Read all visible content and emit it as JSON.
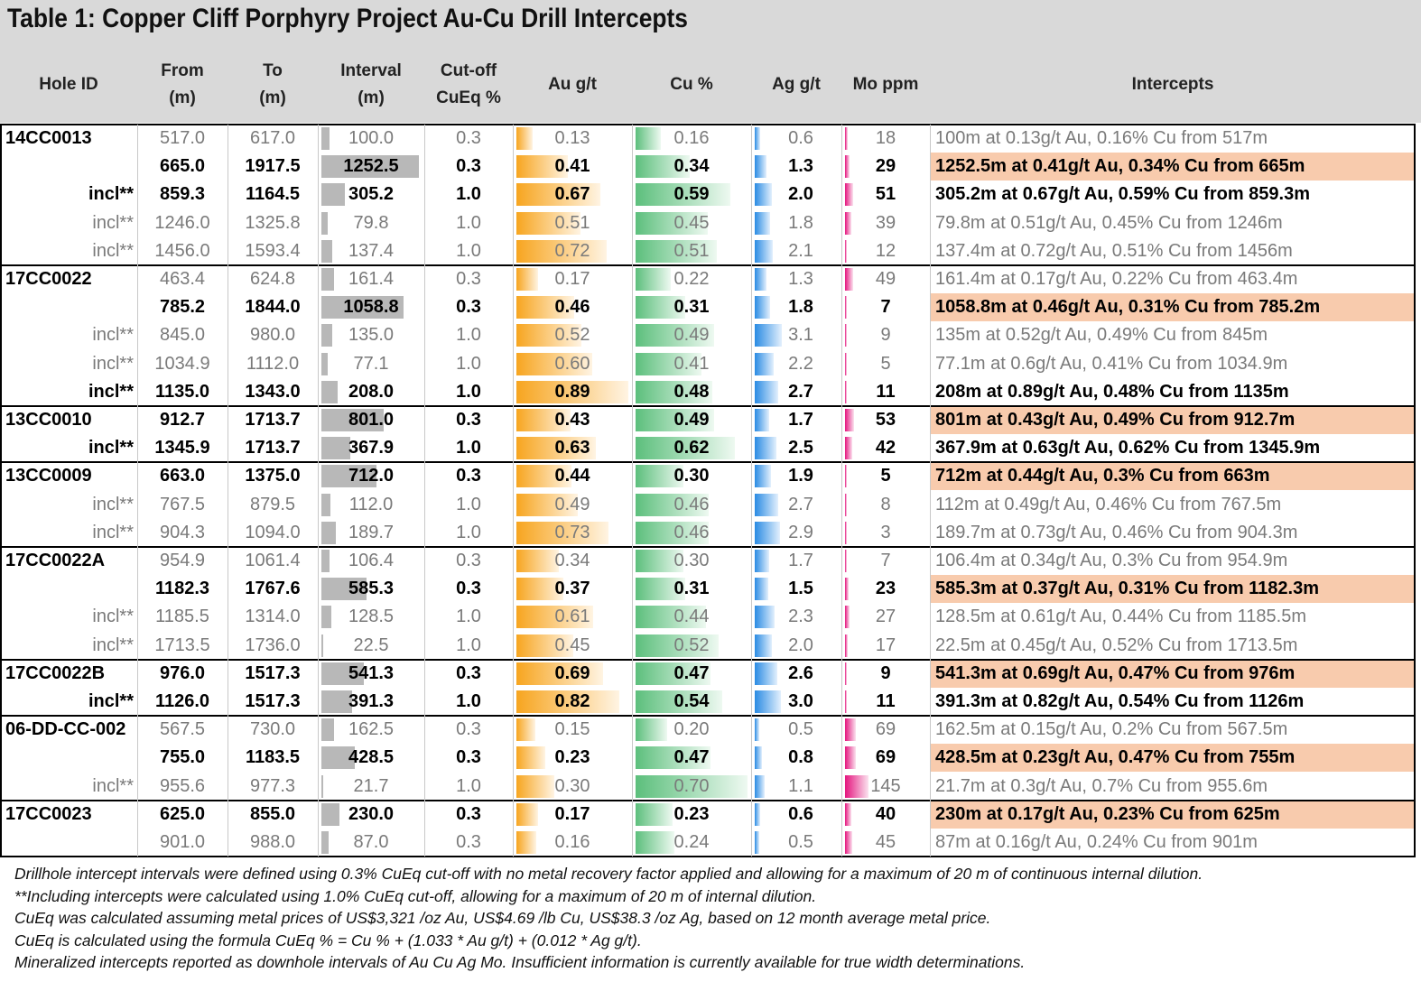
{
  "title": "Table 1: Copper Cliff Porphyry Project Au-Cu Drill Intercepts",
  "columns": {
    "hole_id": "Hole ID",
    "from": "From\n(m)",
    "to": "To\n(m)",
    "interval": "Interval\n(m)",
    "cutoff": "Cut-off\nCuEq %",
    "au": "Au g/t",
    "cu": "Cu %",
    "ag": "Ag g/t",
    "mo": "Mo ppm",
    "intercepts": "Intercepts"
  },
  "holes": [
    {
      "id": "14CC0013",
      "rows": [
        {
          "label": "",
          "from": "517.0",
          "to": "617.0",
          "interval": "100.0",
          "cutoff": "0.3",
          "au": "0.13",
          "cu": "0.16",
          "ag": "0.6",
          "mo": "18",
          "intercept": "100m at 0.13g/t Au, 0.16% Cu from 517m",
          "bold": false,
          "highlight": false
        },
        {
          "label": "",
          "from": "665.0",
          "to": "1917.5",
          "interval": "1252.5",
          "cutoff": "0.3",
          "au": "0.41",
          "cu": "0.34",
          "ag": "1.3",
          "mo": "29",
          "intercept": "1252.5m at 0.41g/t Au, 0.34% Cu from 665m",
          "bold": true,
          "highlight": true
        },
        {
          "label": "incl**",
          "from": "859.3",
          "to": "1164.5",
          "interval": "305.2",
          "cutoff": "1.0",
          "au": "0.67",
          "cu": "0.59",
          "ag": "2.0",
          "mo": "51",
          "intercept": "305.2m at 0.67g/t Au, 0.59% Cu from 859.3m",
          "bold": true,
          "highlight": false
        },
        {
          "label": "incl**",
          "from": "1246.0",
          "to": "1325.8",
          "interval": "79.8",
          "cutoff": "1.0",
          "au": "0.51",
          "cu": "0.45",
          "ag": "1.8",
          "mo": "39",
          "intercept": "79.8m at 0.51g/t Au, 0.45% Cu from 1246m",
          "bold": false,
          "highlight": false
        },
        {
          "label": "incl**",
          "from": "1456.0",
          "to": "1593.4",
          "interval": "137.4",
          "cutoff": "1.0",
          "au": "0.72",
          "cu": "0.51",
          "ag": "2.1",
          "mo": "12",
          "intercept": "137.4m at 0.72g/t Au, 0.51% Cu from 1456m",
          "bold": false,
          "highlight": false
        }
      ]
    },
    {
      "id": "17CC0022",
      "rows": [
        {
          "label": "",
          "from": "463.4",
          "to": "624.8",
          "interval": "161.4",
          "cutoff": "0.3",
          "au": "0.17",
          "cu": "0.22",
          "ag": "1.3",
          "mo": "49",
          "intercept": "161.4m at 0.17g/t Au, 0.22% Cu from 463.4m",
          "bold": false,
          "highlight": false
        },
        {
          "label": "",
          "from": "785.2",
          "to": "1844.0",
          "interval": "1058.8",
          "cutoff": "0.3",
          "au": "0.46",
          "cu": "0.31",
          "ag": "1.8",
          "mo": "7",
          "intercept": "1058.8m at 0.46g/t Au, 0.31% Cu from 785.2m",
          "bold": true,
          "highlight": true
        },
        {
          "label": "incl**",
          "from": "845.0",
          "to": "980.0",
          "interval": "135.0",
          "cutoff": "1.0",
          "au": "0.52",
          "cu": "0.49",
          "ag": "3.1",
          "mo": "9",
          "intercept": "135m at 0.52g/t Au, 0.49% Cu from 845m",
          "bold": false,
          "highlight": false
        },
        {
          "label": "incl**",
          "from": "1034.9",
          "to": "1112.0",
          "interval": "77.1",
          "cutoff": "1.0",
          "au": "0.60",
          "cu": "0.41",
          "ag": "2.2",
          "mo": "5",
          "intercept": "77.1m at 0.6g/t Au, 0.41% Cu from 1034.9m",
          "bold": false,
          "highlight": false
        },
        {
          "label": "incl**",
          "from": "1135.0",
          "to": "1343.0",
          "interval": "208.0",
          "cutoff": "1.0",
          "au": "0.89",
          "cu": "0.48",
          "ag": "2.7",
          "mo": "11",
          "intercept": "208m at 0.89g/t Au, 0.48% Cu from 1135m",
          "bold": true,
          "highlight": false
        }
      ]
    },
    {
      "id": "13CC0010",
      "rows": [
        {
          "label": "",
          "from": "912.7",
          "to": "1713.7",
          "interval": "801.0",
          "cutoff": "0.3",
          "au": "0.43",
          "cu": "0.49",
          "ag": "1.7",
          "mo": "53",
          "intercept": "801m at 0.43g/t Au, 0.49% Cu from 912.7m",
          "bold": true,
          "highlight": true
        },
        {
          "label": "incl**",
          "from": "1345.9",
          "to": "1713.7",
          "interval": "367.9",
          "cutoff": "1.0",
          "au": "0.63",
          "cu": "0.62",
          "ag": "2.5",
          "mo": "42",
          "intercept": "367.9m at 0.63g/t Au, 0.62% Cu from 1345.9m",
          "bold": true,
          "highlight": false
        }
      ]
    },
    {
      "id": "13CC0009",
      "rows": [
        {
          "label": "",
          "from": "663.0",
          "to": "1375.0",
          "interval": "712.0",
          "cutoff": "0.3",
          "au": "0.44",
          "cu": "0.30",
          "ag": "1.9",
          "mo": "5",
          "intercept": "712m at 0.44g/t Au, 0.3% Cu from 663m",
          "bold": true,
          "highlight": true
        },
        {
          "label": "incl**",
          "from": "767.5",
          "to": "879.5",
          "interval": "112.0",
          "cutoff": "1.0",
          "au": "0.49",
          "cu": "0.46",
          "ag": "2.7",
          "mo": "8",
          "intercept": "112m at 0.49g/t Au, 0.46% Cu from 767.5m",
          "bold": false,
          "highlight": false
        },
        {
          "label": "incl**",
          "from": "904.3",
          "to": "1094.0",
          "interval": "189.7",
          "cutoff": "1.0",
          "au": "0.73",
          "cu": "0.46",
          "ag": "2.9",
          "mo": "3",
          "intercept": "189.7m at 0.73g/t Au, 0.46% Cu from 904.3m",
          "bold": false,
          "highlight": false
        }
      ]
    },
    {
      "id": "17CC0022A",
      "rows": [
        {
          "label": "",
          "from": "954.9",
          "to": "1061.4",
          "interval": "106.4",
          "cutoff": "0.3",
          "au": "0.34",
          "cu": "0.30",
          "ag": "1.7",
          "mo": "7",
          "intercept": "106.4m at 0.34g/t Au, 0.3% Cu from 954.9m",
          "bold": false,
          "highlight": false
        },
        {
          "label": "",
          "from": "1182.3",
          "to": "1767.6",
          "interval": "585.3",
          "cutoff": "0.3",
          "au": "0.37",
          "cu": "0.31",
          "ag": "1.5",
          "mo": "23",
          "intercept": "585.3m at 0.37g/t Au, 0.31% Cu from 1182.3m",
          "bold": true,
          "highlight": true
        },
        {
          "label": "incl**",
          "from": "1185.5",
          "to": "1314.0",
          "interval": "128.5",
          "cutoff": "1.0",
          "au": "0.61",
          "cu": "0.44",
          "ag": "2.3",
          "mo": "27",
          "intercept": "128.5m at 0.61g/t Au, 0.44% Cu from 1185.5m",
          "bold": false,
          "highlight": false
        },
        {
          "label": "incl**",
          "from": "1713.5",
          "to": "1736.0",
          "interval": "22.5",
          "cutoff": "1.0",
          "au": "0.45",
          "cu": "0.52",
          "ag": "2.0",
          "mo": "17",
          "intercept": "22.5m at 0.45g/t Au, 0.52% Cu from 1713.5m",
          "bold": false,
          "highlight": false
        }
      ]
    },
    {
      "id": "17CC0022B",
      "rows": [
        {
          "label": "",
          "from": "976.0",
          "to": "1517.3",
          "interval": "541.3",
          "cutoff": "0.3",
          "au": "0.69",
          "cu": "0.47",
          "ag": "2.6",
          "mo": "9",
          "intercept": "541.3m at 0.69g/t Au, 0.47% Cu from 976m",
          "bold": true,
          "highlight": true
        },
        {
          "label": "incl**",
          "from": "1126.0",
          "to": "1517.3",
          "interval": "391.3",
          "cutoff": "1.0",
          "au": "0.82",
          "cu": "0.54",
          "ag": "3.0",
          "mo": "11",
          "intercept": "391.3m at 0.82g/t Au, 0.54% Cu from 1126m",
          "bold": true,
          "highlight": false
        }
      ]
    },
    {
      "id": "06-DD-CC-002",
      "rows": [
        {
          "label": "",
          "from": "567.5",
          "to": "730.0",
          "interval": "162.5",
          "cutoff": "0.3",
          "au": "0.15",
          "cu": "0.20",
          "ag": "0.5",
          "mo": "69",
          "intercept": "162.5m at 0.15g/t Au, 0.2% Cu from 567.5m",
          "bold": false,
          "highlight": false
        },
        {
          "label": "",
          "from": "755.0",
          "to": "1183.5",
          "interval": "428.5",
          "cutoff": "0.3",
          "au": "0.23",
          "cu": "0.47",
          "ag": "0.8",
          "mo": "69",
          "intercept": "428.5m at 0.23g/t Au, 0.47% Cu from 755m",
          "bold": true,
          "highlight": true
        },
        {
          "label": "incl**",
          "from": "955.6",
          "to": "977.3",
          "interval": "21.7",
          "cutoff": "1.0",
          "au": "0.30",
          "cu": "0.70",
          "ag": "1.1",
          "mo": "145",
          "intercept": "21.7m at 0.3g/t Au, 0.7% Cu from 955.6m",
          "bold": false,
          "highlight": false
        }
      ]
    },
    {
      "id": "17CC0023",
      "rows": [
        {
          "label": "",
          "from": "625.0",
          "to": "855.0",
          "interval": "230.0",
          "cutoff": "0.3",
          "au": "0.17",
          "cu": "0.23",
          "ag": "0.6",
          "mo": "40",
          "intercept": "230m at 0.17g/t Au, 0.23% Cu from 625m",
          "bold": true,
          "highlight": true
        },
        {
          "label": "",
          "from": "901.0",
          "to": "988.0",
          "interval": "87.0",
          "cutoff": "0.3",
          "au": "0.16",
          "cu": "0.24",
          "ag": "0.5",
          "mo": "45",
          "intercept": "87m at 0.16g/t Au, 0.24% Cu from 901m",
          "bold": false,
          "highlight": false
        }
      ]
    }
  ],
  "scales": {
    "interval_max": 1252.5,
    "au_max": 0.89,
    "cu_max": 0.7,
    "ag_max": 3.1,
    "mo_max": 145
  },
  "colors": {
    "highlight": "#f8cbad",
    "header_bg": "#d9d9d9",
    "interval_bar": "#b8b8b8",
    "au_bar": "#f7a51f",
    "cu_bar": "#5cbf7c",
    "ag_bar": "#2a8be3",
    "mo_bar": "#e4157e"
  },
  "footnotes": [
    "Drillhole intercept intervals were defined using 0.3% CuEq cut-off with no metal recovery factor applied and allowing for a maximum of 20 m of continuous internal dilution.",
    "**Including intercepts were calculated using 1.0% CuEq cut-off, allowing for a maximum of 20 m of internal dilution.",
    "CuEq was calculated assuming metal prices of US$3,321 /oz Au, US$4.69 /lb Cu, US$38.3 /oz Ag, based on 12 month average metal price.",
    "CuEq is calculated using the formula CuEq % = Cu % + (1.033 * Au g/t) + (0.012 * Ag g/t).",
    "Mineralized intercepts reported as downhole intervals of Au Cu Ag Mo. Insufficient information is currently available for true width determinations."
  ]
}
